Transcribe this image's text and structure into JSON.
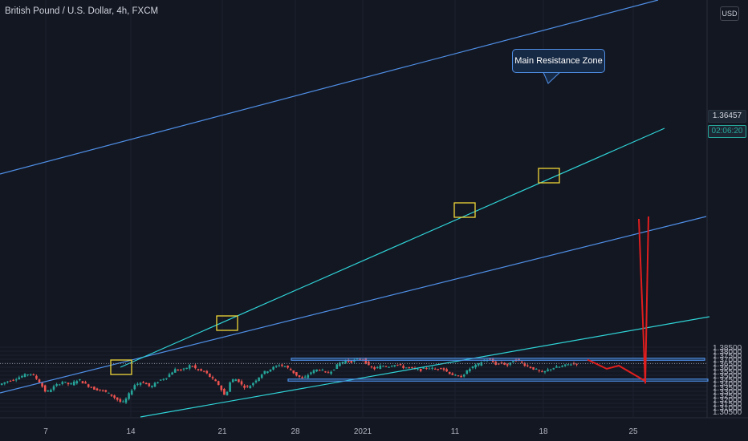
{
  "header": {
    "symbol_title": "British Pound / U.S. Dollar, 4h, FXCM",
    "currency_button": "USD"
  },
  "price_axis": {
    "current_price": "1.36457",
    "countdown": "02:06:20"
  },
  "annotations": {
    "resistance_label": "Main Resistance Zone"
  },
  "colors": {
    "background": "#131722",
    "up_candle": "#26a69a",
    "down_candle": "#ef5350",
    "channel_line": "#4f8fe6",
    "trendline": "#2fd3d6",
    "zone_border": "#4f8fe6",
    "pivot_box": "#f0d637",
    "projection_arrow": "#e01e1e"
  },
  "chart_data": {
    "type": "candlestick",
    "title": "British Pound / U.S. Dollar, 4h, FXCM",
    "ylim": [
      1.3045,
      1.3845
    ],
    "y_ticks": [
      "1.30500",
      "1.31000",
      "1.31500",
      "1.32000",
      "1.32500",
      "1.33000",
      "1.33500",
      "1.34000",
      "1.34500",
      "1.35000",
      "1.35500",
      "1.36000",
      "1.36500",
      "1.37000",
      "1.37500",
      "1.38000",
      "1.38500"
    ],
    "x_ticks": [
      "7",
      "14",
      "21",
      "28",
      "2021",
      "11",
      "18",
      "25"
    ],
    "last_price": 1.36457,
    "price_path": [
      [
        0,
        1.3375
      ],
      [
        10,
        1.342
      ],
      [
        20,
        1.345
      ],
      [
        30,
        1.349
      ],
      [
        40,
        1.3525
      ],
      [
        50,
        1.344
      ],
      [
        60,
        1.328
      ],
      [
        70,
        1.336
      ],
      [
        80,
        1.342
      ],
      [
        90,
        1.338
      ],
      [
        100,
        1.345
      ],
      [
        110,
        1.338
      ],
      [
        120,
        1.333
      ],
      [
        130,
        1.331
      ],
      [
        140,
        1.326
      ],
      [
        148,
        1.32
      ],
      [
        155,
        1.315
      ],
      [
        160,
        1.321
      ],
      [
        170,
        1.338
      ],
      [
        180,
        1.342
      ],
      [
        190,
        1.335
      ],
      [
        200,
        1.343
      ],
      [
        210,
        1.348
      ],
      [
        220,
        1.357
      ],
      [
        230,
        1.356
      ],
      [
        240,
        1.363
      ],
      [
        245,
        1.359
      ],
      [
        250,
        1.356
      ],
      [
        258,
        1.354
      ],
      [
        265,
        1.347
      ],
      [
        275,
        1.338
      ],
      [
        283,
        1.323
      ],
      [
        290,
        1.344
      ],
      [
        298,
        1.345
      ],
      [
        305,
        1.336
      ],
      [
        312,
        1.335
      ],
      [
        320,
        1.343
      ],
      [
        330,
        1.353
      ],
      [
        340,
        1.358
      ],
      [
        350,
        1.363
      ],
      [
        358,
        1.361
      ],
      [
        365,
        1.356
      ],
      [
        372,
        1.35
      ],
      [
        380,
        1.345
      ],
      [
        390,
        1.354
      ],
      [
        400,
        1.358
      ],
      [
        410,
        1.352
      ],
      [
        418,
        1.358
      ],
      [
        425,
        1.365
      ],
      [
        432,
        1.368
      ],
      [
        440,
        1.367
      ],
      [
        448,
        1.37
      ],
      [
        455,
        1.37
      ],
      [
        462,
        1.361
      ],
      [
        470,
        1.358
      ],
      [
        478,
        1.362
      ],
      [
        486,
        1.361
      ],
      [
        495,
        1.364
      ],
      [
        505,
        1.36
      ],
      [
        515,
        1.359
      ],
      [
        525,
        1.356
      ],
      [
        535,
        1.36
      ],
      [
        545,
        1.357
      ],
      [
        552,
        1.36
      ],
      [
        560,
        1.354
      ],
      [
        568,
        1.35
      ],
      [
        575,
        1.347
      ],
      [
        582,
        1.353
      ],
      [
        590,
        1.36
      ],
      [
        598,
        1.363
      ],
      [
        605,
        1.369
      ],
      [
        612,
        1.37
      ],
      [
        620,
        1.364
      ],
      [
        628,
        1.365
      ],
      [
        636,
        1.362
      ],
      [
        643,
        1.37
      ],
      [
        650,
        1.367
      ],
      [
        658,
        1.362
      ],
      [
        665,
        1.359
      ],
      [
        672,
        1.356
      ],
      [
        678,
        1.353
      ],
      [
        684,
        1.356
      ],
      [
        690,
        1.359
      ],
      [
        698,
        1.36
      ],
      [
        706,
        1.362
      ],
      [
        712,
        1.364
      ],
      [
        718,
        1.3646
      ]
    ],
    "resistance_zone": [
      1.3687,
      1.3712
    ],
    "support_zone": [
      1.3427,
      1.3452
    ],
    "projection": [
      1.3695,
      1.358,
      1.362,
      1.3427
    ]
  }
}
